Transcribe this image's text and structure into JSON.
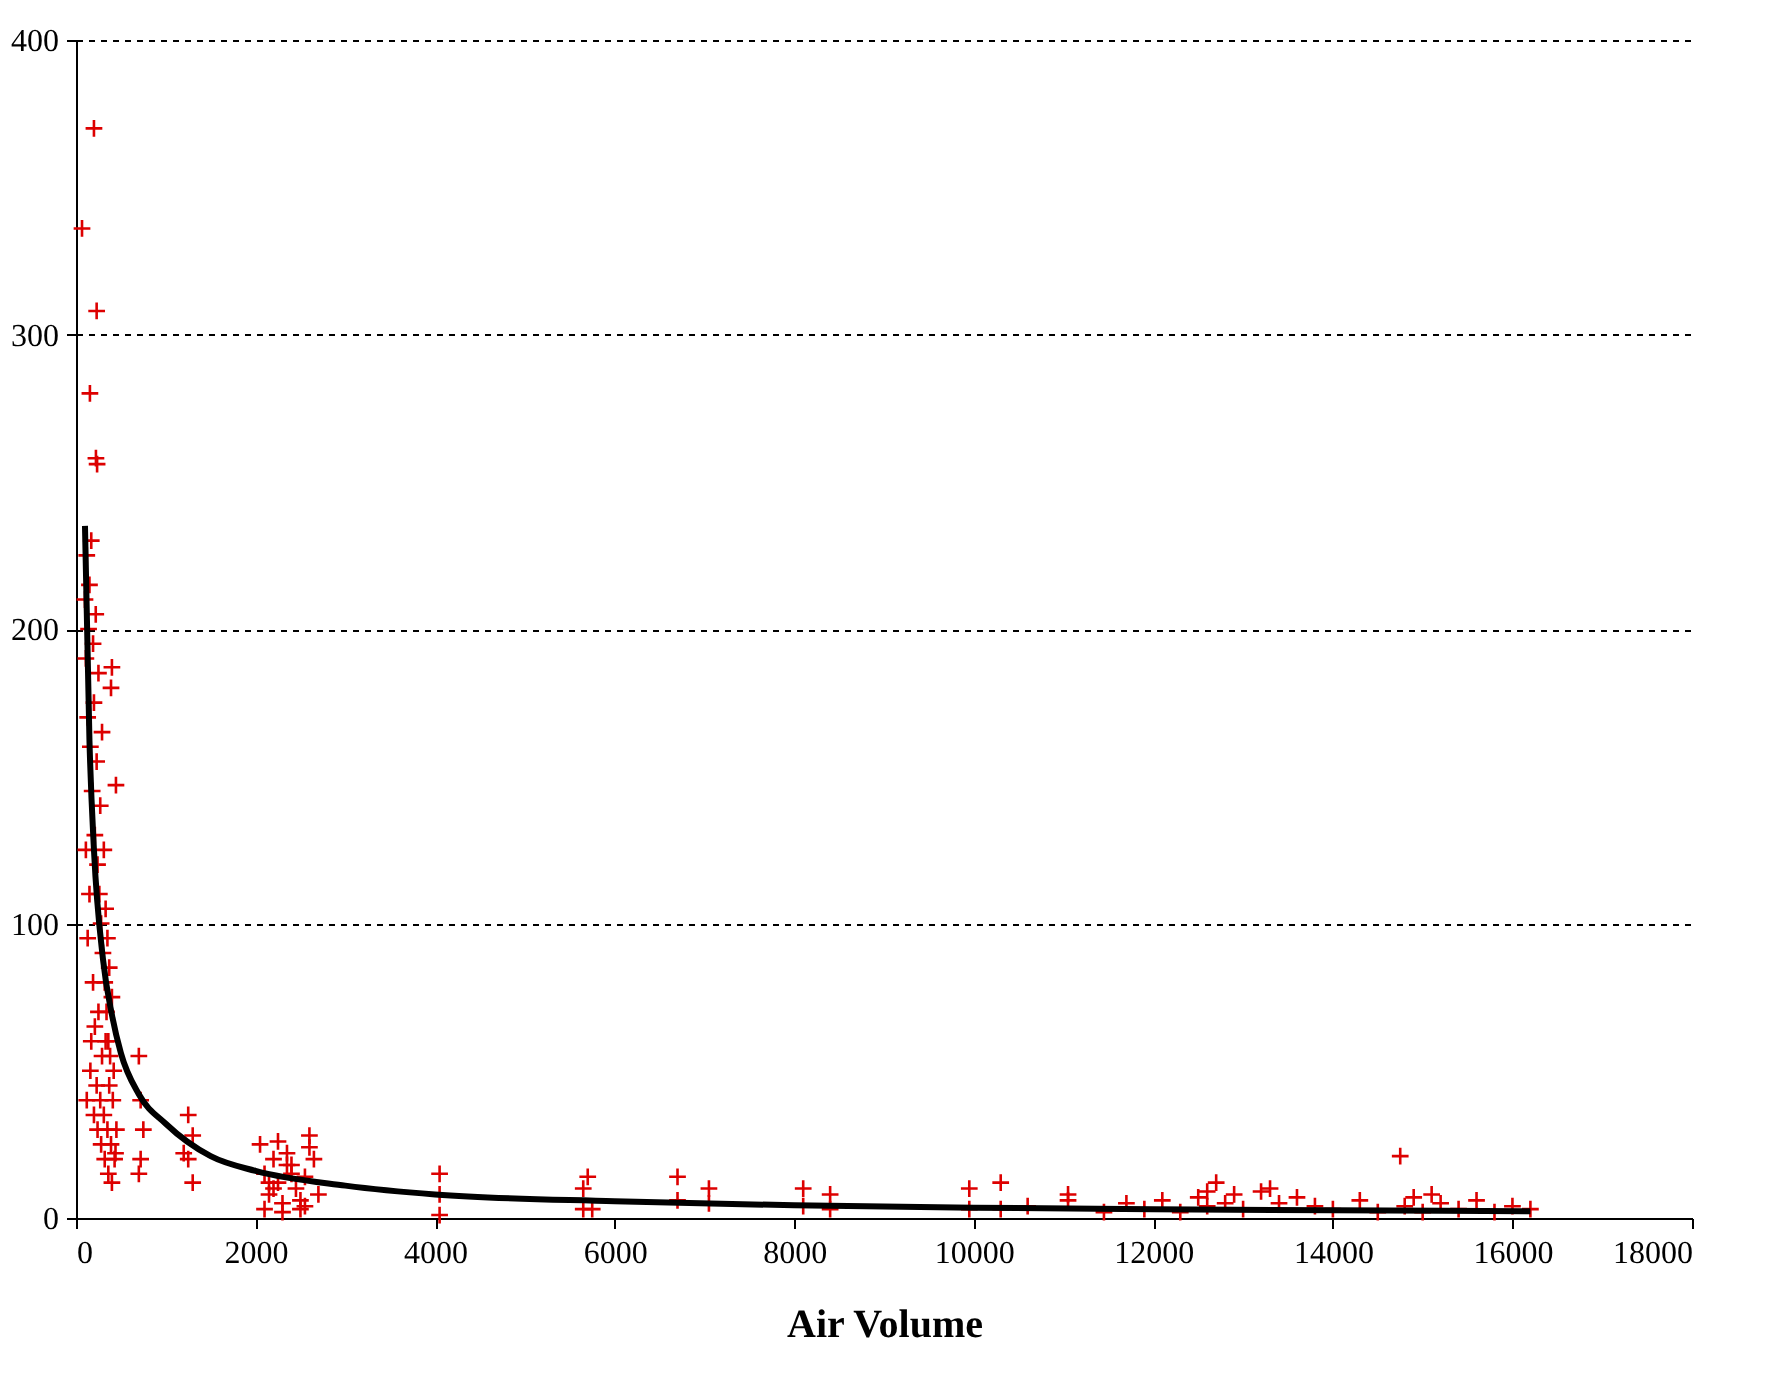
{
  "chart_data": {
    "type": "scatter",
    "xlabel": "Air Volume",
    "xlim": [
      0,
      18000
    ],
    "xticks": [
      0,
      2000,
      4000,
      6000,
      8000,
      10000,
      12000,
      14000,
      16000,
      18000
    ],
    "ylim": [
      0,
      400
    ],
    "yticks": [
      0,
      100,
      200,
      300,
      400
    ],
    "grid": "y",
    "series": [
      {
        "marker": "cross",
        "color": "#dd0000",
        "x": [
          67,
          200,
          230,
          155,
          222,
          235,
          400,
          390,
          445,
          100,
          110,
          120,
          130,
          140,
          150,
          160,
          170,
          180,
          190,
          200,
          210,
          220,
          230,
          240,
          250,
          260,
          270,
          280,
          290,
          300,
          310,
          320,
          330,
          340,
          350,
          360,
          370,
          380,
          400,
          420,
          110,
          130,
          150,
          170,
          190,
          210,
          230,
          250,
          270,
          290,
          310,
          330,
          350,
          370,
          390,
          410,
          430,
          450,
          120,
          160,
          200,
          240,
          280,
          320,
          360,
          400,
          440,
          700,
          720,
          750,
          700,
          720,
          1250,
          1300,
          1250,
          1300,
          1200,
          2050,
          2100,
          2150,
          2200,
          2250,
          2300,
          2350,
          2400,
          2450,
          2500,
          2550,
          2600,
          2650,
          2700,
          2100,
          2200,
          2300,
          2400,
          2500,
          2600,
          2150,
          2350,
          2550,
          2250,
          4050,
          4050,
          4050,
          5650,
          5700,
          5650,
          5750,
          6700,
          6700,
          7050,
          7050,
          8100,
          8100,
          8400,
          8400,
          9950,
          9950,
          10300,
          10300,
          10600,
          11050,
          11050,
          11450,
          11700,
          11900,
          12100,
          12300,
          12500,
          12600,
          12700,
          12800,
          12900,
          13000,
          13200,
          13400,
          13600,
          13800,
          14000,
          14300,
          14500,
          14750,
          14800,
          14900,
          15000,
          15200,
          15400,
          15600,
          15800,
          16000,
          16200,
          12600,
          13300,
          15100
        ],
        "values": [
          336,
          370,
          308,
          280,
          258,
          256,
          187,
          180,
          147,
          210,
          190,
          225,
          170,
          200,
          215,
          160,
          230,
          145,
          195,
          175,
          130,
          205,
          155,
          120,
          185,
          110,
          140,
          100,
          165,
          90,
          125,
          80,
          105,
          70,
          95,
          60,
          85,
          55,
          75,
          50,
          125,
          95,
          110,
          60,
          80,
          65,
          45,
          70,
          40,
          55,
          35,
          60,
          30,
          45,
          25,
          40,
          20,
          30,
          40,
          50,
          35,
          30,
          25,
          20,
          15,
          12,
          22,
          55,
          40,
          30,
          15,
          20,
          35,
          28,
          20,
          12,
          22,
          25,
          15,
          8,
          20,
          12,
          5,
          22,
          18,
          10,
          3,
          14,
          28,
          20,
          8,
          3,
          10,
          2,
          15,
          6,
          24,
          12,
          18,
          4,
          26,
          1,
          15,
          8,
          3,
          14,
          10,
          3,
          6,
          14,
          5,
          10,
          4,
          10,
          3,
          8,
          3,
          10,
          3,
          12,
          4,
          6,
          8,
          2,
          5,
          3,
          6,
          2,
          7,
          4,
          12,
          5,
          8,
          3,
          9,
          5,
          7,
          4,
          3,
          6,
          2,
          21,
          4,
          7,
          2,
          5,
          3,
          6,
          2,
          4,
          3,
          9,
          10,
          8
        ]
      },
      {
        "type": "line",
        "color": "#000000",
        "x": [
          100,
          150,
          200,
          300,
          400,
          500,
          700,
          1000,
          1500,
          2000,
          3000,
          4000,
          6000,
          8000,
          10000,
          12000,
          14000,
          16200
        ],
        "values": [
          235,
          162,
          125,
          88,
          69,
          56,
          42,
          32,
          21,
          16,
          11,
          8,
          5.7,
          4.3,
          3.5,
          3,
          2.6,
          2.3
        ]
      }
    ]
  }
}
